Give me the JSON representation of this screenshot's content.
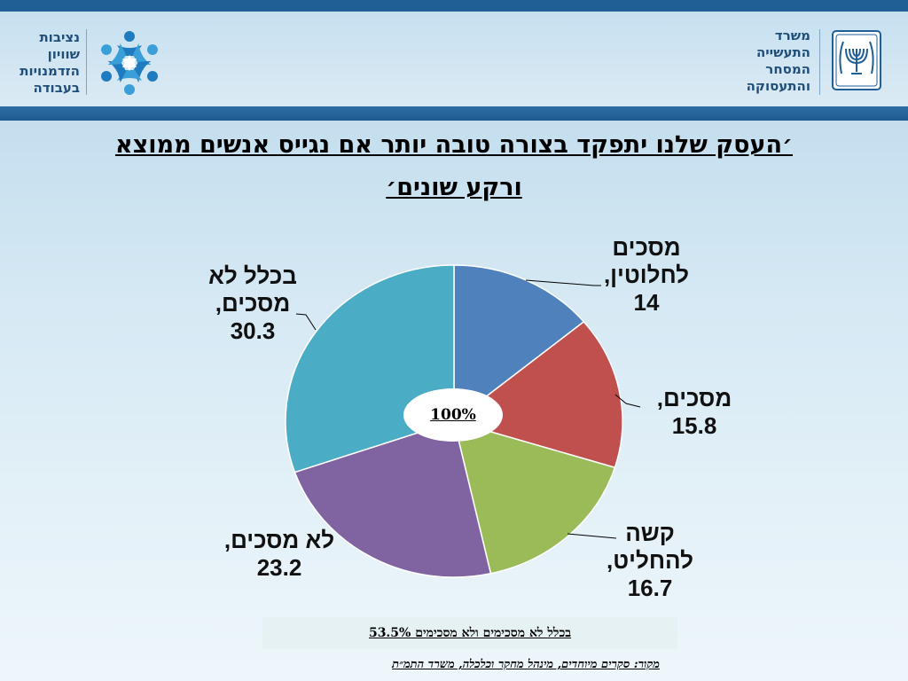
{
  "header": {
    "left_org": "נציבות\nשוויון\nהזדמנויות\nבעבודה",
    "right_org": "משרד\nהתעשייה\nהמסחר\nוהתעסוקה"
  },
  "title": "׳העסק שלנו יתפקד בצורה טובה יותר אם נגייס אנשים ממוצא\nורקע שונים׳",
  "chart_data": {
    "type": "pie",
    "title": "",
    "center_label": "100%",
    "slices": [
      {
        "label": "מסכים\nלחלוטין,\n14",
        "name": "מסכים לחלוטין",
        "value": 14,
        "color": "#4f81bd"
      },
      {
        "label": "מסכים,\n15.8",
        "name": "מסכים",
        "value": 15.8,
        "color": "#c0504d"
      },
      {
        "label": "קשה\nלהחליט,\n16.7",
        "name": "קשה להחליט",
        "value": 16.7,
        "color": "#9bbb59"
      },
      {
        "label": "לא מסכים,\n23.2",
        "name": "לא מסכים",
        "value": 23.2,
        "color": "#8064a2"
      },
      {
        "label": "בכלל לא\nמסכים,\n30.3",
        "name": "בכלל לא מסכים",
        "value": 30.3,
        "color": "#4bacc6"
      }
    ]
  },
  "summary": "בכלל לא מסכימים ולא מסכימים 53.5%",
  "source": "מקור: סקרים מיוחדים, מינהל מחקר וכלכלה, משרד התמ״ת"
}
